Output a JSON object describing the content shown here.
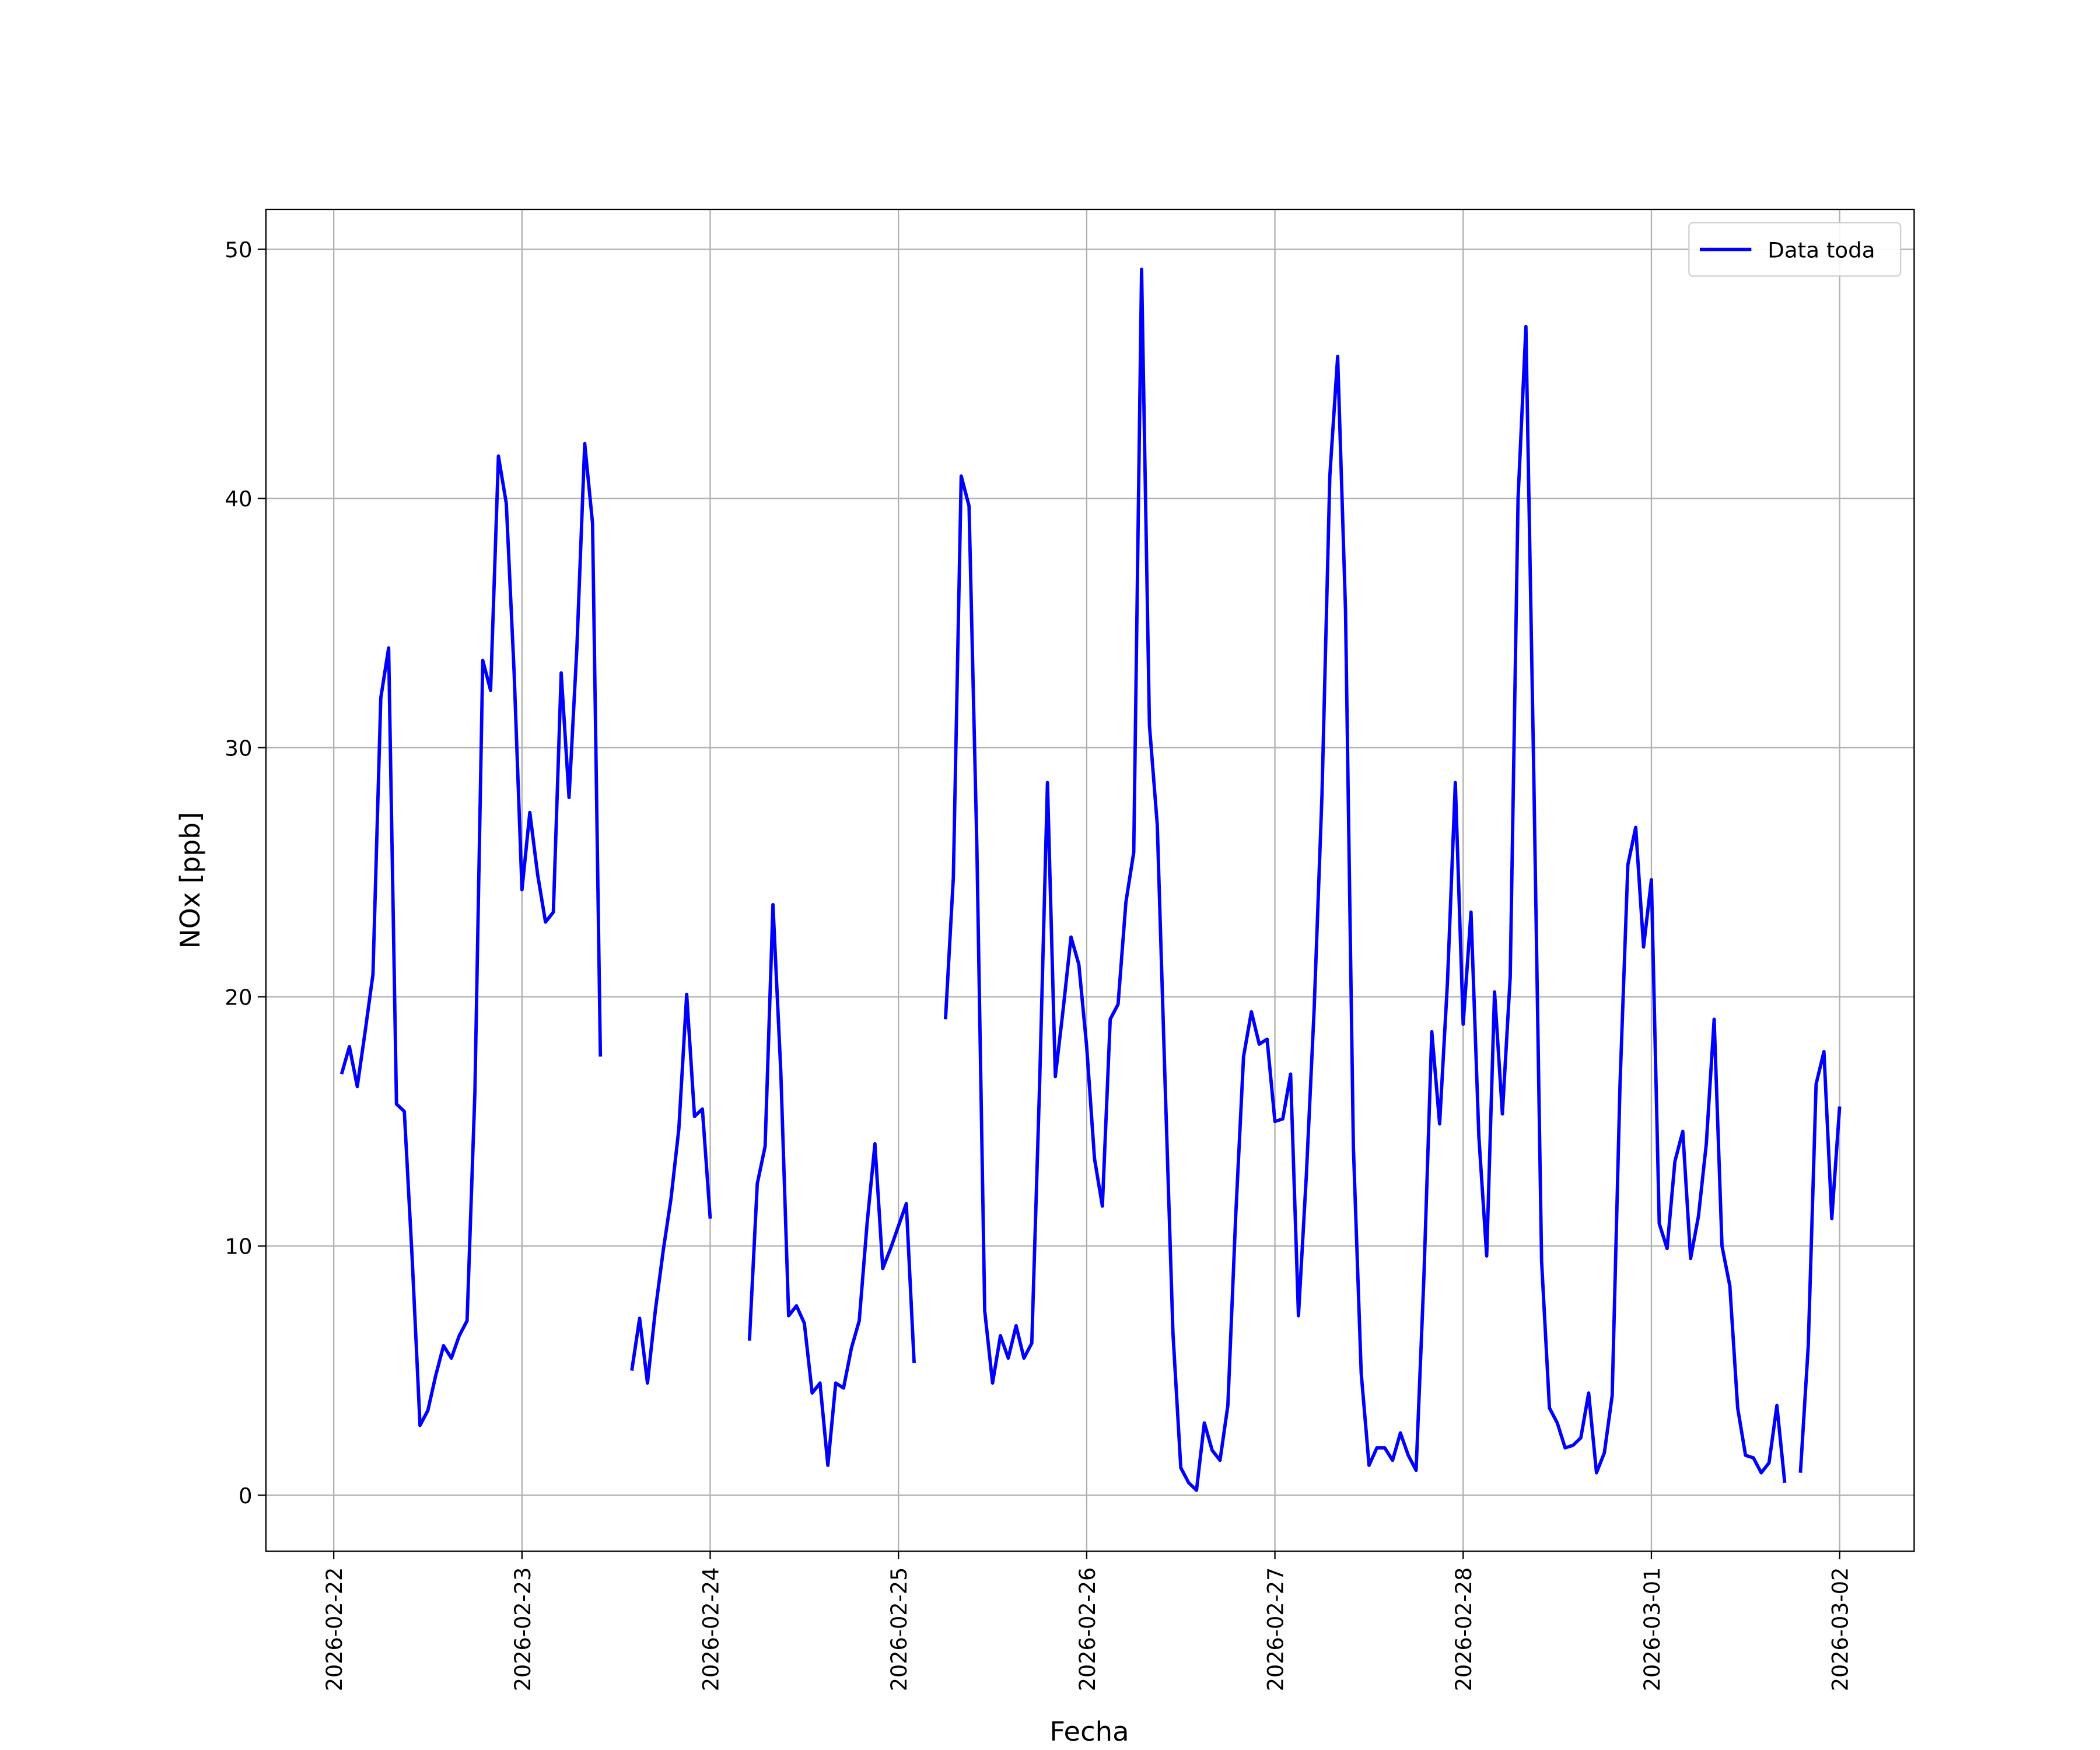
{
  "chart_data": {
    "type": "line",
    "xlabel": "Fecha",
    "ylabel": "NOx [ppb]",
    "xlim": [
      "2026-02-21 15:21",
      "2026-03-02 09:30"
    ],
    "xticks": [
      "2026-02-22",
      "2026-02-23",
      "2026-02-24",
      "2026-02-25",
      "2026-02-26",
      "2026-02-27",
      "2026-02-28",
      "2026-03-01",
      "2026-03-02"
    ],
    "ylim": [
      -2.25,
      51.6
    ],
    "yticks": [
      0,
      10,
      20,
      30,
      40,
      50
    ],
    "grid": true,
    "legend": "upper right",
    "x": [
      "2026-02-22 01:00",
      "2026-02-22 02:00",
      "2026-02-22 03:00",
      "2026-02-22 04:00",
      "2026-02-22 05:00",
      "2026-02-22 06:00",
      "2026-02-22 07:00",
      "2026-02-22 08:00",
      "2026-02-22 09:00",
      "2026-02-22 10:00",
      "2026-02-22 11:00",
      "2026-02-22 12:00",
      "2026-02-22 13:00",
      "2026-02-22 14:00",
      "2026-02-22 15:00",
      "2026-02-22 16:00",
      "2026-02-22 17:00",
      "2026-02-22 18:00",
      "2026-02-22 19:00",
      "2026-02-22 20:00",
      "2026-02-22 21:00",
      "2026-02-22 22:00",
      "2026-02-22 23:00",
      "2026-02-23 00:00",
      "2026-02-23 01:00",
      "2026-02-23 02:00",
      "2026-02-23 03:00",
      "2026-02-23 04:00",
      "2026-02-23 05:00",
      "2026-02-23 06:00",
      "2026-02-23 07:00",
      "2026-02-23 08:00",
      "2026-02-23 09:00",
      "2026-02-23 10:00",
      "2026-02-23 11:00",
      "2026-02-23 12:00",
      "2026-02-23 13:00",
      "2026-02-23 14:00",
      "2026-02-23 15:00",
      "2026-02-23 16:00",
      "2026-02-23 17:00",
      "2026-02-23 18:00",
      "2026-02-23 19:00",
      "2026-02-23 20:00",
      "2026-02-23 21:00",
      "2026-02-23 22:00",
      "2026-02-23 23:00",
      "2026-02-24 00:00",
      "2026-02-24 01:00",
      "2026-02-24 02:00",
      "2026-02-24 03:00",
      "2026-02-24 04:00",
      "2026-02-24 05:00",
      "2026-02-24 06:00",
      "2026-02-24 07:00",
      "2026-02-24 08:00",
      "2026-02-24 09:00",
      "2026-02-24 10:00",
      "2026-02-24 11:00",
      "2026-02-24 12:00",
      "2026-02-24 13:00",
      "2026-02-24 14:00",
      "2026-02-24 15:00",
      "2026-02-24 16:00",
      "2026-02-24 17:00",
      "2026-02-24 18:00",
      "2026-02-24 19:00",
      "2026-02-24 20:00",
      "2026-02-24 21:00",
      "2026-02-24 22:00",
      "2026-02-24 23:00",
      "2026-02-25 00:00",
      "2026-02-25 01:00",
      "2026-02-25 02:00",
      "2026-02-25 03:00",
      "2026-02-25 04:00",
      "2026-02-25 05:00",
      "2026-02-25 06:00",
      "2026-02-25 07:00",
      "2026-02-25 08:00",
      "2026-02-25 09:00",
      "2026-02-25 10:00",
      "2026-02-25 11:00",
      "2026-02-25 12:00",
      "2026-02-25 13:00",
      "2026-02-25 14:00",
      "2026-02-25 15:00",
      "2026-02-25 16:00",
      "2026-02-25 17:00",
      "2026-02-25 18:00",
      "2026-02-25 19:00",
      "2026-02-25 20:00",
      "2026-02-25 21:00",
      "2026-02-25 22:00",
      "2026-02-25 23:00",
      "2026-02-26 00:00",
      "2026-02-26 01:00",
      "2026-02-26 02:00",
      "2026-02-26 03:00",
      "2026-02-26 04:00",
      "2026-02-26 05:00",
      "2026-02-26 06:00",
      "2026-02-26 07:00",
      "2026-02-26 08:00",
      "2026-02-26 09:00",
      "2026-02-26 10:00",
      "2026-02-26 11:00",
      "2026-02-26 12:00",
      "2026-02-26 13:00",
      "2026-02-26 14:00",
      "2026-02-26 15:00",
      "2026-02-26 16:00",
      "2026-02-26 17:00",
      "2026-02-26 18:00",
      "2026-02-26 19:00",
      "2026-02-26 20:00",
      "2026-02-26 21:00",
      "2026-02-26 22:00",
      "2026-02-26 23:00",
      "2026-02-27 00:00",
      "2026-02-27 01:00",
      "2026-02-27 02:00",
      "2026-02-27 03:00",
      "2026-02-27 04:00",
      "2026-02-27 05:00",
      "2026-02-27 06:00",
      "2026-02-27 07:00",
      "2026-02-27 08:00",
      "2026-02-27 09:00",
      "2026-02-27 10:00",
      "2026-02-27 11:00",
      "2026-02-27 12:00",
      "2026-02-27 13:00",
      "2026-02-27 14:00",
      "2026-02-27 15:00",
      "2026-02-27 16:00",
      "2026-02-27 17:00",
      "2026-02-27 18:00",
      "2026-02-27 19:00",
      "2026-02-27 20:00",
      "2026-02-27 21:00",
      "2026-02-27 22:00",
      "2026-02-27 23:00",
      "2026-02-28 00:00",
      "2026-02-28 01:00",
      "2026-02-28 02:00",
      "2026-02-28 03:00",
      "2026-02-28 04:00",
      "2026-02-28 05:00",
      "2026-02-28 06:00",
      "2026-02-28 07:00",
      "2026-02-28 08:00",
      "2026-02-28 09:00",
      "2026-02-28 10:00",
      "2026-02-28 11:00",
      "2026-02-28 12:00",
      "2026-02-28 13:00",
      "2026-02-28 14:00",
      "2026-02-28 15:00",
      "2026-02-28 16:00",
      "2026-02-28 17:00",
      "2026-02-28 18:00",
      "2026-02-28 19:00",
      "2026-02-28 20:00",
      "2026-02-28 21:00",
      "2026-02-28 22:00",
      "2026-02-28 23:00",
      "2026-03-01 00:00",
      "2026-03-01 01:00",
      "2026-03-01 02:00",
      "2026-03-01 03:00",
      "2026-03-01 04:00",
      "2026-03-01 05:00",
      "2026-03-01 06:00",
      "2026-03-01 07:00",
      "2026-03-01 08:00",
      "2026-03-01 09:00",
      "2026-03-01 10:00",
      "2026-03-01 11:00",
      "2026-03-01 12:00",
      "2026-03-01 13:00",
      "2026-03-01 14:00",
      "2026-03-01 15:00",
      "2026-03-01 16:00",
      "2026-03-01 17:00",
      "2026-03-01 18:00",
      "2026-03-01 19:00",
      "2026-03-01 20:00",
      "2026-03-01 21:00",
      "2026-03-01 22:00",
      "2026-03-01 23:00",
      "2026-03-02 00:00"
    ],
    "series": [
      {
        "name": "Data toda",
        "color": "#0000ff",
        "values": [
          16.9,
          18.0,
          16.4,
          18.6,
          20.9,
          32.0,
          34.0,
          15.7,
          15.4,
          9.5,
          2.8,
          3.4,
          4.8,
          6.0,
          5.5,
          6.4,
          7.0,
          16.2,
          33.5,
          32.3,
          41.7,
          39.8,
          33.0,
          24.3,
          27.4,
          24.9,
          23.0,
          23.4,
          33.0,
          28.0,
          34.0,
          42.2,
          39.0,
          17.6,
          null,
          null,
          null,
          5.0,
          7.1,
          4.5,
          7.4,
          9.8,
          11.9,
          14.7,
          20.1,
          15.2,
          15.5,
          11.1,
          null,
          null,
          null,
          null,
          6.2,
          12.5,
          14.0,
          23.7,
          17.0,
          7.2,
          7.6,
          6.9,
          4.1,
          4.5,
          1.2,
          4.5,
          4.3,
          5.9,
          7.0,
          10.9,
          14.1,
          9.1,
          9.9,
          10.8,
          11.7,
          5.3,
          null,
          null,
          null,
          19.1,
          24.8,
          40.9,
          39.7,
          26.0,
          7.4,
          4.5,
          6.4,
          5.5,
          6.8,
          5.5,
          6.1,
          16.5,
          28.6,
          16.8,
          19.5,
          22.4,
          21.3,
          18.0,
          13.5,
          11.6,
          19.1,
          19.7,
          23.8,
          25.8,
          49.2,
          30.9,
          26.9,
          16.5,
          6.5,
          1.1,
          0.5,
          0.2,
          2.9,
          1.8,
          1.4,
          3.6,
          11.2,
          17.6,
          19.4,
          18.1,
          18.3,
          15.0,
          15.1,
          16.9,
          7.2,
          12.8,
          19.5,
          28.1,
          40.9,
          45.7,
          35.5,
          14.0,
          4.9,
          1.2,
          1.9,
          1.9,
          1.4,
          2.5,
          1.6,
          1.0,
          8.8,
          18.6,
          14.9,
          20.6,
          28.6,
          18.9,
          23.4,
          14.4,
          9.6,
          20.2,
          15.3,
          20.8,
          40.0,
          46.9,
          29.0,
          9.4,
          3.5,
          2.9,
          1.9,
          2.0,
          2.3,
          4.1,
          0.9,
          1.7,
          4.0,
          16.5,
          25.3,
          26.8,
          22.0,
          24.7,
          10.9,
          9.9,
          13.4,
          14.6,
          9.5,
          11.2,
          14.1,
          19.1,
          10.0,
          8.4,
          3.5,
          1.6,
          1.5,
          0.9,
          1.3,
          3.6,
          0.5,
          null,
          0.9,
          6.0,
          16.5,
          17.8,
          11.1,
          15.6
        ]
      }
    ]
  }
}
